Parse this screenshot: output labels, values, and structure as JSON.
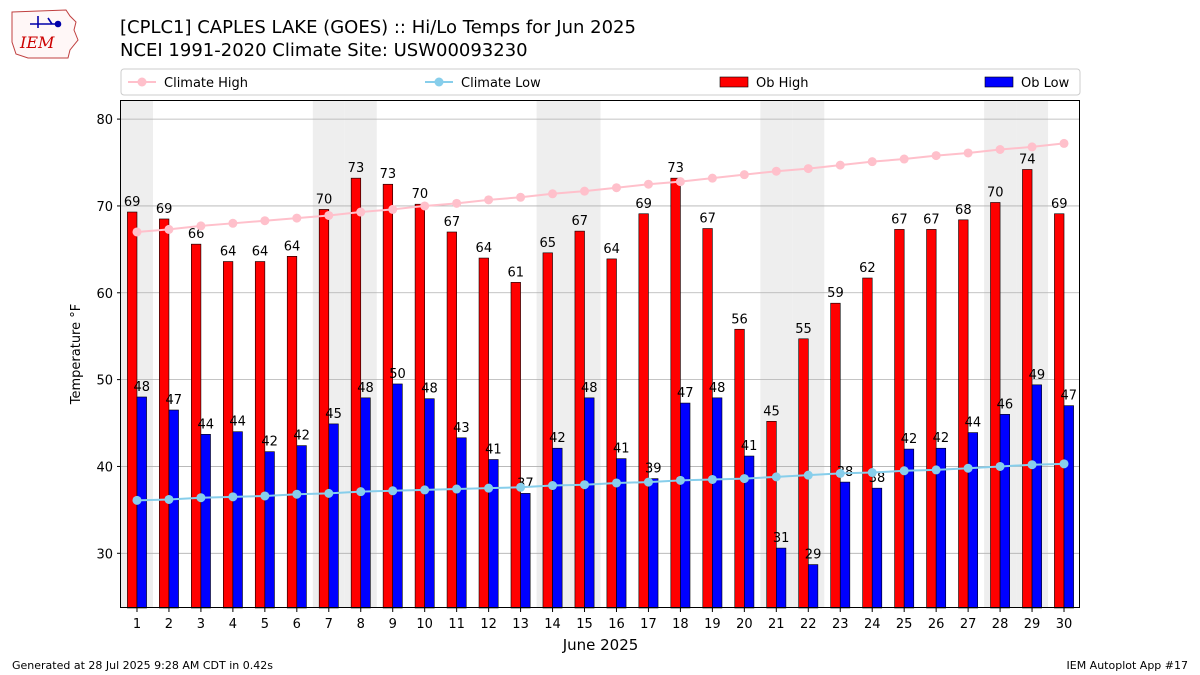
{
  "header": {
    "title_line1": "[CPLC1] CAPLES LAKE (GOES) :: Hi/Lo Temps for Jun 2025",
    "title_line2": "NCEI 1991-2020 Climate Site: USW00093230"
  },
  "logo": {
    "text": "IEM"
  },
  "footer": {
    "generated": "Generated at 28 Jul 2025 9:28 AM CDT in 0.42s",
    "app": "IEM Autoplot App #17"
  },
  "colors": {
    "ob_high": "#ff0000",
    "ob_low": "#0000ff",
    "climate_high": "#ffc0cb",
    "climate_low": "#87ceeb",
    "weekend_shade": "#eeeeee",
    "grid": "#b0b0b0"
  },
  "chart_data": {
    "type": "bar",
    "xlabel": "June 2025",
    "ylabel": "Temperature °F",
    "ylim": [
      23.7,
      82.2
    ],
    "yticks": [
      30,
      40,
      50,
      60,
      70,
      80
    ],
    "grid": "horizontal",
    "legend_position": "top",
    "legend": [
      "Climate High",
      "Climate Low",
      "Ob High",
      "Ob Low"
    ],
    "categories": [
      1,
      2,
      3,
      4,
      5,
      6,
      7,
      8,
      9,
      10,
      11,
      12,
      13,
      14,
      15,
      16,
      17,
      18,
      19,
      20,
      21,
      22,
      23,
      24,
      25,
      26,
      27,
      28,
      29,
      30
    ],
    "weekend_days": [
      1,
      7,
      8,
      14,
      15,
      21,
      22,
      28,
      29
    ],
    "series": [
      {
        "name": "Ob High",
        "kind": "bar",
        "labels": true,
        "values": [
          69.3,
          68.5,
          65.6,
          63.6,
          63.6,
          64.2,
          69.6,
          73.2,
          72.5,
          70.2,
          67.0,
          64.0,
          61.2,
          64.6,
          67.1,
          63.9,
          69.1,
          73.2,
          67.4,
          55.8,
          45.2,
          54.7,
          58.8,
          61.7,
          67.3,
          67.3,
          68.4,
          70.4,
          74.2,
          69.1
        ]
      },
      {
        "name": "Ob Low",
        "kind": "bar",
        "labels": true,
        "values": [
          48.0,
          46.5,
          43.7,
          44.0,
          41.7,
          42.4,
          44.9,
          47.9,
          49.5,
          47.8,
          43.3,
          40.8,
          36.9,
          42.1,
          47.9,
          40.9,
          38.6,
          47.3,
          47.9,
          41.2,
          30.6,
          28.7,
          38.2,
          37.5,
          42.0,
          42.1,
          43.9,
          46.0,
          49.4,
          47.0
        ]
      },
      {
        "name": "Climate High",
        "kind": "line",
        "values": [
          67.0,
          67.3,
          67.7,
          68.0,
          68.3,
          68.6,
          68.9,
          69.3,
          69.6,
          70.0,
          70.3,
          70.7,
          71.0,
          71.4,
          71.7,
          72.1,
          72.5,
          72.8,
          73.2,
          73.6,
          74.0,
          74.3,
          74.7,
          75.1,
          75.4,
          75.8,
          76.1,
          76.5,
          76.8,
          77.2
        ]
      },
      {
        "name": "Climate Low",
        "kind": "line",
        "values": [
          36.1,
          36.2,
          36.4,
          36.5,
          36.6,
          36.8,
          36.9,
          37.1,
          37.2,
          37.3,
          37.4,
          37.5,
          37.6,
          37.8,
          37.9,
          38.1,
          38.2,
          38.4,
          38.5,
          38.6,
          38.8,
          39.0,
          39.2,
          39.3,
          39.5,
          39.6,
          39.8,
          40.0,
          40.2,
          40.3
        ]
      }
    ]
  }
}
